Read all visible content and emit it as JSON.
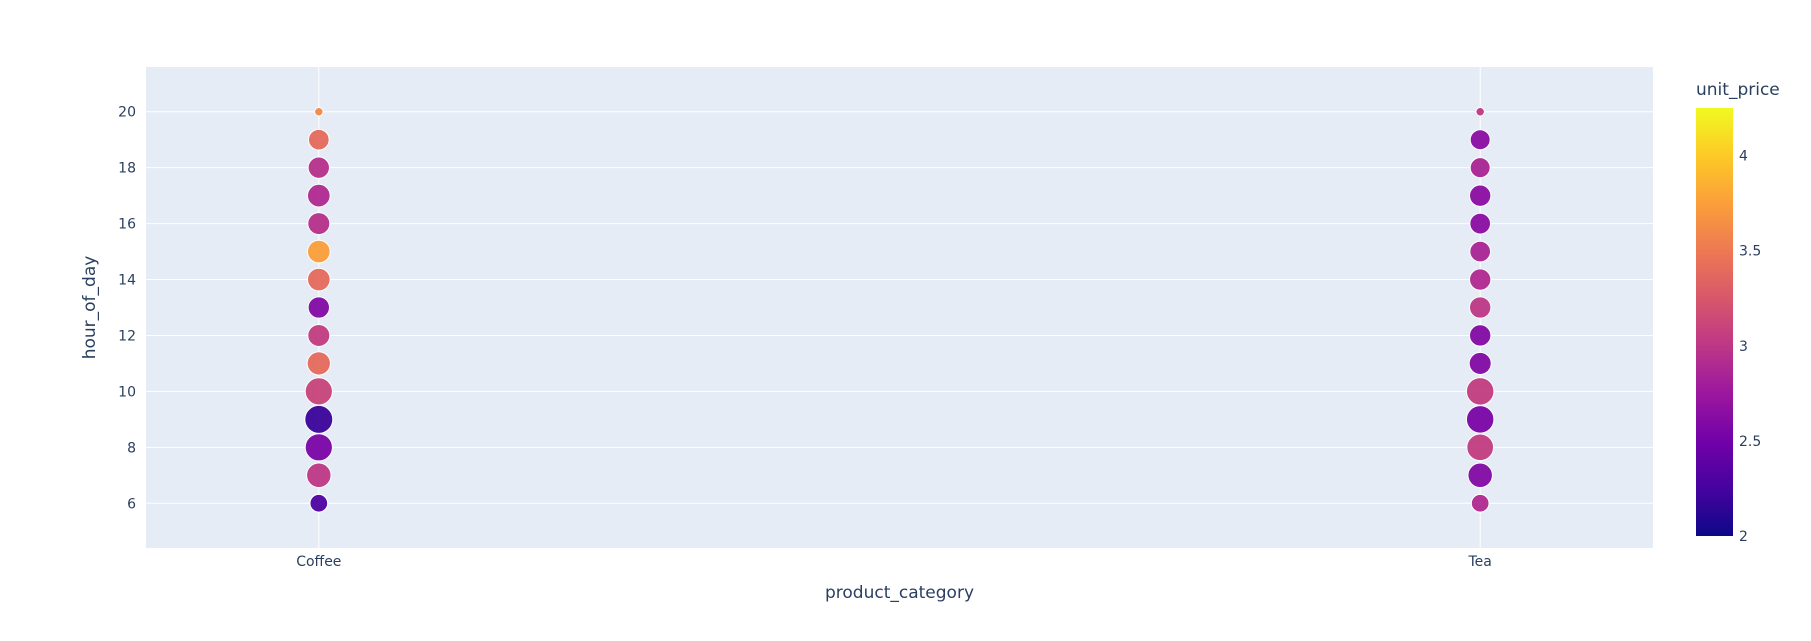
{
  "chart_data": {
    "type": "scatter",
    "xlabel": "product_category",
    "ylabel": "hour_of_day",
    "categories": [
      "Coffee",
      "Tea"
    ],
    "ylim": [
      4.4,
      21.6
    ],
    "yticks": [
      6,
      8,
      10,
      12,
      14,
      16,
      18,
      20
    ],
    "grid": true,
    "colorbar": {
      "title": "unit_price",
      "range": [
        2,
        4.25
      ],
      "ticks": [
        2,
        2.5,
        3,
        3.5,
        4
      ],
      "colorscale": [
        "#0d0887",
        "#46039f",
        "#7201a8",
        "#9c179e",
        "#bd3786",
        "#d8576b",
        "#ed7953",
        "#fb9f3a",
        "#fdca26",
        "#f0f921"
      ]
    },
    "size_encoding": "relative",
    "points": [
      {
        "category": "Coffee",
        "hour": 6,
        "price": 2.3,
        "size": 0.22
      },
      {
        "category": "Coffee",
        "hour": 7,
        "price": 3.0,
        "size": 0.42
      },
      {
        "category": "Coffee",
        "hour": 8,
        "price": 2.55,
        "size": 0.52
      },
      {
        "category": "Coffee",
        "hour": 9,
        "price": 2.2,
        "size": 0.55
      },
      {
        "category": "Coffee",
        "hour": 10,
        "price": 3.1,
        "size": 0.52
      },
      {
        "category": "Coffee",
        "hour": 11,
        "price": 3.4,
        "size": 0.38
      },
      {
        "category": "Coffee",
        "hour": 12,
        "price": 3.05,
        "size": 0.34
      },
      {
        "category": "Coffee",
        "hour": 13,
        "price": 2.6,
        "size": 0.32
      },
      {
        "category": "Coffee",
        "hour": 14,
        "price": 3.4,
        "size": 0.36
      },
      {
        "category": "Coffee",
        "hour": 15,
        "price": 3.75,
        "size": 0.36
      },
      {
        "category": "Coffee",
        "hour": 16,
        "price": 2.95,
        "size": 0.34
      },
      {
        "category": "Coffee",
        "hour": 17,
        "price": 2.9,
        "size": 0.36
      },
      {
        "category": "Coffee",
        "hour": 18,
        "price": 2.95,
        "size": 0.32
      },
      {
        "category": "Coffee",
        "hour": 19,
        "price": 3.4,
        "size": 0.3
      },
      {
        "category": "Coffee",
        "hour": 20,
        "price": 3.6,
        "size": 0.05
      },
      {
        "category": "Tea",
        "hour": 6,
        "price": 2.9,
        "size": 0.22
      },
      {
        "category": "Tea",
        "hour": 7,
        "price": 2.6,
        "size": 0.42
      },
      {
        "category": "Tea",
        "hour": 8,
        "price": 3.05,
        "size": 0.5
      },
      {
        "category": "Tea",
        "hour": 9,
        "price": 2.55,
        "size": 0.53
      },
      {
        "category": "Tea",
        "hour": 10,
        "price": 3.05,
        "size": 0.53
      },
      {
        "category": "Tea",
        "hour": 11,
        "price": 2.6,
        "size": 0.34
      },
      {
        "category": "Tea",
        "hour": 12,
        "price": 2.6,
        "size": 0.32
      },
      {
        "category": "Tea",
        "hour": 13,
        "price": 3.0,
        "size": 0.32
      },
      {
        "category": "Tea",
        "hour": 14,
        "price": 2.9,
        "size": 0.32
      },
      {
        "category": "Tea",
        "hour": 15,
        "price": 2.85,
        "size": 0.3
      },
      {
        "category": "Tea",
        "hour": 16,
        "price": 2.65,
        "size": 0.3
      },
      {
        "category": "Tea",
        "hour": 17,
        "price": 2.65,
        "size": 0.32
      },
      {
        "category": "Tea",
        "hour": 18,
        "price": 2.85,
        "size": 0.28
      },
      {
        "category": "Tea",
        "hour": 19,
        "price": 2.65,
        "size": 0.28
      },
      {
        "category": "Tea",
        "hour": 20,
        "price": 3.0,
        "size": 0.05
      }
    ]
  }
}
